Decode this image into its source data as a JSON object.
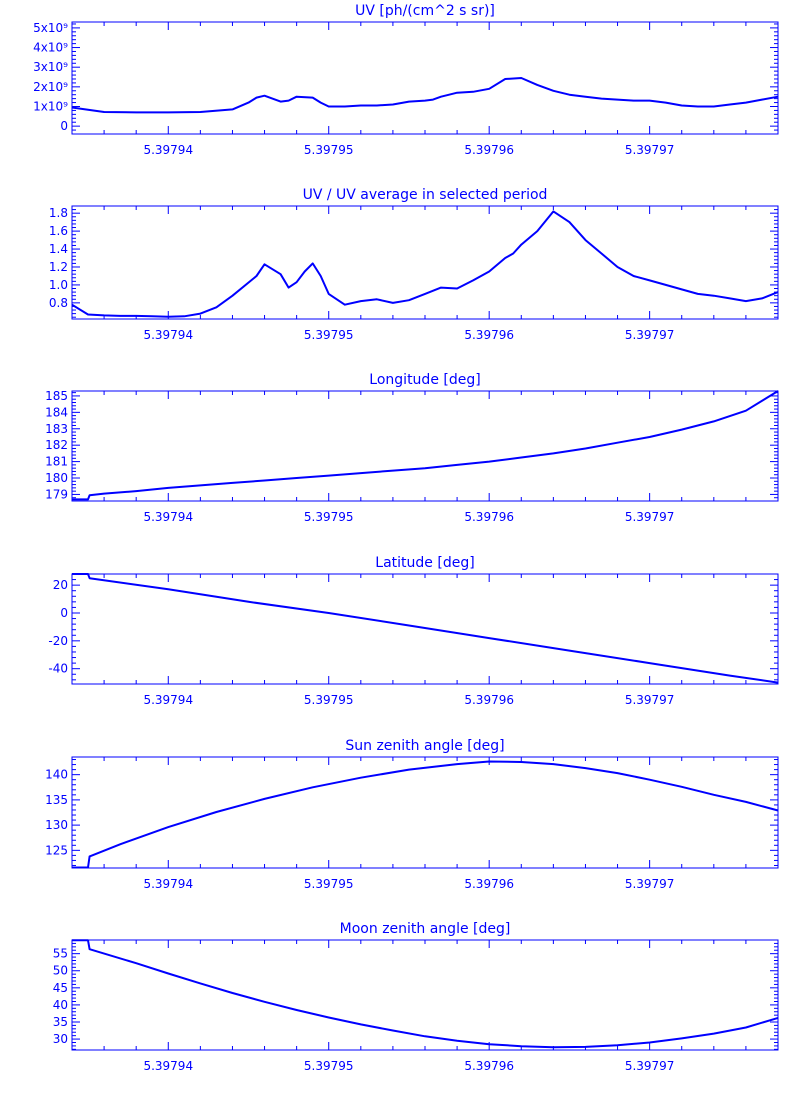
{
  "style": {
    "line_color": "#0000ff",
    "background": "#ffffff"
  },
  "chart_data": [
    {
      "type": "line",
      "title": "UV [ph/(cm^2 s sr)]",
      "xlabel": "",
      "ylabel": "",
      "xlim": [
        5.397934,
        5.397978
      ],
      "ylim": [
        -400000000.0,
        5300000000.0
      ],
      "x_ticks": [
        5.39794,
        5.39795,
        5.39796,
        5.39797
      ],
      "x_tick_labels": [
        "5.39794",
        "5.39795",
        "5.39796",
        "5.39797"
      ],
      "y_ticks": [
        0,
        1000000000.0,
        2000000000.0,
        3000000000.0,
        4000000000.0,
        5000000000.0
      ],
      "y_tick_labels": [
        "0",
        "1x10⁹",
        "2x10⁹",
        "3x10⁹",
        "4x10⁹",
        "5x10⁹"
      ],
      "grid": false,
      "series": [
        {
          "x": [
            5.397934,
            5.397936,
            5.397938,
            5.39794,
            5.397942,
            5.397944,
            5.397945,
            5.3979455,
            5.397946,
            5.397947,
            5.3979475,
            5.397948,
            5.397949,
            5.3979495,
            5.39795,
            5.397951,
            5.397952,
            5.397953,
            5.397954,
            5.397955,
            5.397956,
            5.3979565,
            5.397957,
            5.3979575,
            5.397958,
            5.397959,
            5.39796,
            5.397961,
            5.397962,
            5.397963,
            5.397964,
            5.397965,
            5.397966,
            5.397967,
            5.397968,
            5.397969,
            5.39797,
            5.397971,
            5.397972,
            5.397973,
            5.397974,
            5.397975,
            5.397976,
            5.397977,
            5.397978
          ],
          "y": [
            950000000.0,
            720000000.0,
            700000000.0,
            700000000.0,
            720000000.0,
            850000000.0,
            1200000000.0,
            1450000000.0,
            1550000000.0,
            1250000000.0,
            1300000000.0,
            1500000000.0,
            1450000000.0,
            1200000000.0,
            1000000000.0,
            1000000000.0,
            1050000000.0,
            1050000000.0,
            1100000000.0,
            1250000000.0,
            1300000000.0,
            1350000000.0,
            1500000000.0,
            1600000000.0,
            1700000000.0,
            1750000000.0,
            1900000000.0,
            2400000000.0,
            2450000000.0,
            2100000000.0,
            1800000000.0,
            1600000000.0,
            1500000000.0,
            1400000000.0,
            1350000000.0,
            1300000000.0,
            1300000000.0,
            1200000000.0,
            1050000000.0,
            1000000000.0,
            1000000000.0,
            1100000000.0,
            1200000000.0,
            1350000000.0,
            1500000000.0
          ]
        }
      ]
    },
    {
      "type": "line",
      "title": "UV / UV average in selected period",
      "xlabel": "",
      "ylabel": "",
      "xlim": [
        5.397934,
        5.397978
      ],
      "ylim": [
        0.62,
        1.88
      ],
      "x_ticks": [
        5.39794,
        5.39795,
        5.39796,
        5.39797
      ],
      "x_tick_labels": [
        "5.39794",
        "5.39795",
        "5.39796",
        "5.39797"
      ],
      "y_ticks": [
        0.8,
        1.0,
        1.2,
        1.4,
        1.6,
        1.8
      ],
      "y_tick_labels": [
        "0.8",
        "1.0",
        "1.2",
        "1.4",
        "1.6",
        "1.8"
      ],
      "grid": false,
      "series": [
        {
          "x": [
            5.397934,
            5.397935,
            5.397936,
            5.397937,
            5.397938,
            5.397939,
            5.39794,
            5.397941,
            5.397942,
            5.397943,
            5.397944,
            5.3979455,
            5.397946,
            5.397947,
            5.3979475,
            5.397948,
            5.3979485,
            5.397949,
            5.3979495,
            5.39795,
            5.397951,
            5.397952,
            5.397953,
            5.397954,
            5.397955,
            5.397956,
            5.397957,
            5.397958,
            5.397959,
            5.39796,
            5.397961,
            5.3979615,
            5.397962,
            5.397963,
            5.397964,
            5.397965,
            5.397966,
            5.397967,
            5.397968,
            5.397969,
            5.39797,
            5.397971,
            5.397972,
            5.397973,
            5.397974,
            5.397975,
            5.397976,
            5.397977,
            5.397978
          ],
          "y": [
            0.78,
            0.67,
            0.66,
            0.655,
            0.655,
            0.65,
            0.645,
            0.65,
            0.68,
            0.75,
            0.88,
            1.1,
            1.23,
            1.12,
            0.97,
            1.03,
            1.15,
            1.24,
            1.1,
            0.9,
            0.78,
            0.82,
            0.84,
            0.8,
            0.83,
            0.9,
            0.97,
            0.96,
            1.05,
            1.15,
            1.3,
            1.35,
            1.45,
            1.6,
            1.82,
            1.7,
            1.5,
            1.35,
            1.2,
            1.1,
            1.05,
            1.0,
            0.95,
            0.9,
            0.88,
            0.85,
            0.82,
            0.85,
            0.92
          ]
        }
      ]
    },
    {
      "type": "line",
      "title": "Longitude [deg]",
      "xlabel": "",
      "ylabel": "",
      "xlim": [
        5.397934,
        5.397978
      ],
      "ylim": [
        178.6,
        185.3
      ],
      "x_ticks": [
        5.39794,
        5.39795,
        5.39796,
        5.39797
      ],
      "x_tick_labels": [
        "5.39794",
        "5.39795",
        "5.39796",
        "5.39797"
      ],
      "y_ticks": [
        179,
        180,
        181,
        182,
        183,
        184,
        185
      ],
      "y_tick_labels": [
        "179",
        "180",
        "181",
        "182",
        "183",
        "184",
        "185"
      ],
      "grid": false,
      "series": [
        {
          "x": [
            5.397934,
            5.397935,
            5.3979351,
            5.397936,
            5.397938,
            5.39794,
            5.397942,
            5.397944,
            5.397946,
            5.397948,
            5.39795,
            5.397952,
            5.397954,
            5.397956,
            5.397958,
            5.39796,
            5.397962,
            5.397964,
            5.397966,
            5.397968,
            5.39797,
            5.397972,
            5.397974,
            5.397976,
            5.397978
          ],
          "y": [
            178.7,
            178.7,
            178.95,
            179.05,
            179.2,
            179.4,
            179.55,
            179.7,
            179.85,
            180.0,
            180.15,
            180.3,
            180.45,
            180.6,
            180.8,
            181.0,
            181.25,
            181.5,
            181.8,
            182.15,
            182.5,
            182.95,
            183.45,
            184.1,
            185.3
          ]
        }
      ]
    },
    {
      "type": "line",
      "title": "Latitude [deg]",
      "xlabel": "",
      "ylabel": "",
      "xlim": [
        5.397934,
        5.397978
      ],
      "ylim": [
        -51,
        28
      ],
      "x_ticks": [
        5.39794,
        5.39795,
        5.39796,
        5.39797
      ],
      "x_tick_labels": [
        "5.39794",
        "5.39795",
        "5.39796",
        "5.39797"
      ],
      "y_ticks": [
        -40,
        -20,
        0,
        20
      ],
      "y_tick_labels": [
        "-40",
        "-20",
        "0",
        "20"
      ],
      "grid": false,
      "series": [
        {
          "x": [
            5.397934,
            5.397935,
            5.3979351,
            5.39794,
            5.397945,
            5.39795,
            5.397955,
            5.39796,
            5.397965,
            5.39797,
            5.397975,
            5.397978
          ],
          "y": [
            28,
            28,
            25,
            17,
            8,
            0,
            -9,
            -18,
            -27,
            -36,
            -45,
            -50
          ]
        }
      ]
    },
    {
      "type": "line",
      "title": "Sun zenith angle [deg]",
      "xlabel": "",
      "ylabel": "",
      "xlim": [
        5.397934,
        5.397978
      ],
      "ylim": [
        121.5,
        143.5
      ],
      "x_ticks": [
        5.39794,
        5.39795,
        5.39796,
        5.39797
      ],
      "x_tick_labels": [
        "5.39794",
        "5.39795",
        "5.39796",
        "5.39797"
      ],
      "y_ticks": [
        125,
        130,
        135,
        140
      ],
      "y_tick_labels": [
        "125",
        "130",
        "135",
        "140"
      ],
      "grid": false,
      "series": [
        {
          "x": [
            5.397934,
            5.397935,
            5.3979351,
            5.397937,
            5.39794,
            5.397943,
            5.397946,
            5.397949,
            5.397952,
            5.397955,
            5.397958,
            5.39796,
            5.397962,
            5.397964,
            5.397966,
            5.397968,
            5.39797,
            5.397972,
            5.397974,
            5.397976,
            5.397978
          ],
          "y": [
            121.6,
            121.6,
            123.8,
            126.2,
            129.6,
            132.6,
            135.2,
            137.5,
            139.4,
            141.0,
            142.1,
            142.6,
            142.5,
            142.1,
            141.3,
            140.3,
            139.0,
            137.6,
            136.0,
            134.6,
            132.9
          ]
        }
      ]
    },
    {
      "type": "line",
      "title": "Moon zenith angle [deg]",
      "xlabel": "",
      "ylabel": "",
      "xlim": [
        5.397934,
        5.397978
      ],
      "ylim": [
        26.8,
        59
      ],
      "x_ticks": [
        5.39794,
        5.39795,
        5.39796,
        5.39797
      ],
      "x_tick_labels": [
        "5.39794",
        "5.39795",
        "5.39796",
        "5.39797"
      ],
      "y_ticks": [
        30,
        35,
        40,
        45,
        50,
        55
      ],
      "y_tick_labels": [
        "30",
        "35",
        "40",
        "45",
        "50",
        "55"
      ],
      "grid": false,
      "series": [
        {
          "x": [
            5.397934,
            5.397935,
            5.3979351,
            5.397938,
            5.39794,
            5.397942,
            5.397944,
            5.397946,
            5.397948,
            5.39795,
            5.397952,
            5.397954,
            5.397956,
            5.397958,
            5.39796,
            5.397962,
            5.397964,
            5.397966,
            5.397968,
            5.39797,
            5.397972,
            5.397974,
            5.397976,
            5.397978
          ],
          "y": [
            58.9,
            58.9,
            56.3,
            52.2,
            49.2,
            46.3,
            43.5,
            40.9,
            38.5,
            36.3,
            34.3,
            32.5,
            30.8,
            29.5,
            28.5,
            27.9,
            27.6,
            27.7,
            28.2,
            29.0,
            30.2,
            31.6,
            33.4,
            36.2
          ]
        }
      ]
    }
  ]
}
